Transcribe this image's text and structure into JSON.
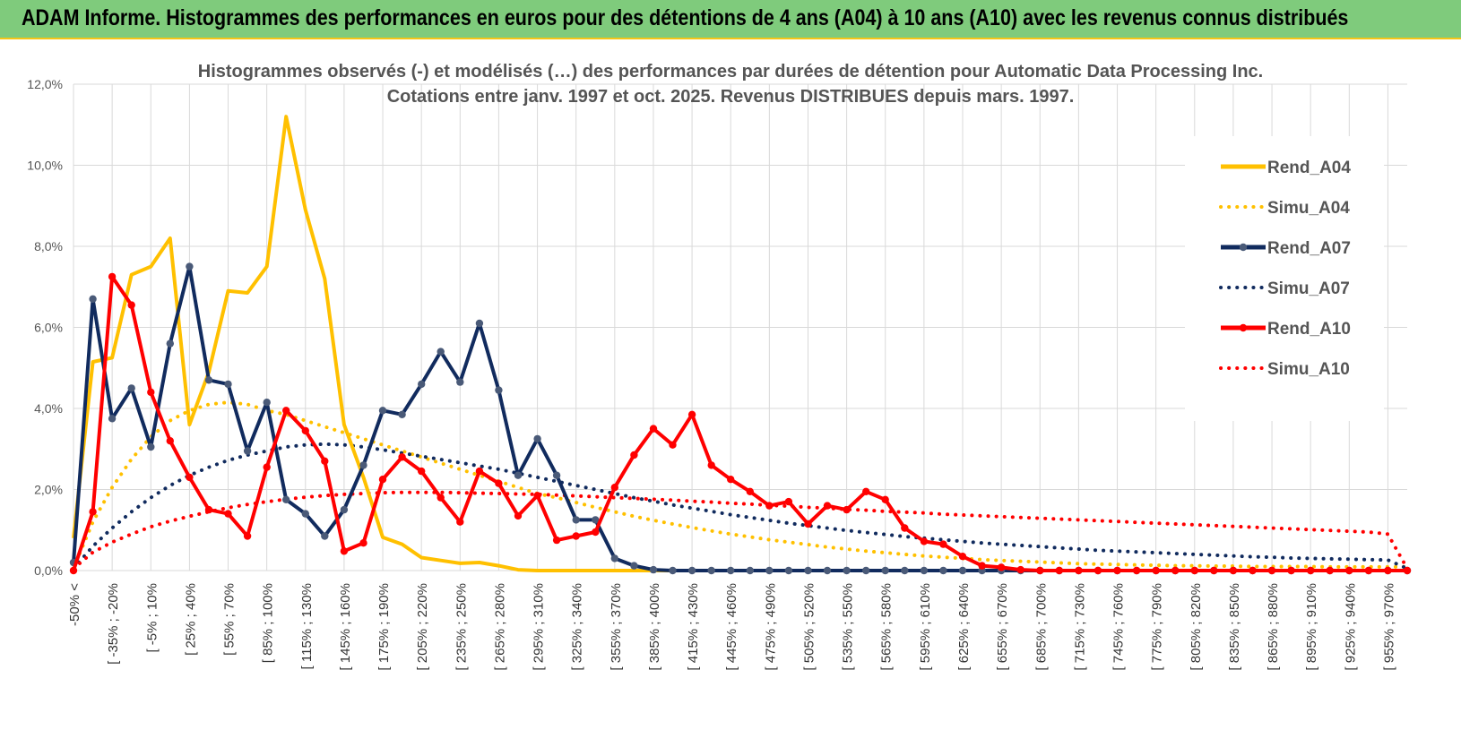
{
  "banner": {
    "title": "ADAM Informe. Histogrammes des performances en euros pour des détentions de 4 ans (A04) à 10 ans (A10) avec les revenus connus distribués"
  },
  "chart_data": {
    "type": "line",
    "title_line1": "Histogrammes observés (-) et modélisés (…) des performances par durées de détention pour Automatic Data Processing Inc.",
    "title_line2": "Cotations entre janv. 1997 et oct. 2025.  Revenus DISTRIBUES depuis mars. 1997.",
    "ylim": [
      0,
      12
    ],
    "yticks": [
      "0,0%",
      "2,0%",
      "4,0%",
      "6,0%",
      "8,0%",
      "10,0%",
      "12,0%"
    ],
    "xlabels": [
      "-50% <",
      "[ -35% ; -20%",
      "[ -5% ; 10%",
      "[ 25% ; 40%",
      "[ 55% ; 70%",
      "[ 85% ; 100%",
      "[ 115% ; 130%",
      "[ 145% ; 160%",
      "[ 175% ; 190%",
      "[ 205% ; 220%",
      "[ 235% ; 250%",
      "[ 265% ; 280%",
      "[ 295% ; 310%",
      "[ 325% ; 340%",
      "[ 355% ; 370%",
      "[ 385% ; 400%",
      "[ 415% ; 430%",
      "[ 445% ; 460%",
      "[ 475% ; 490%",
      "[ 505% ; 520%",
      "[ 535% ; 550%",
      "[ 565% ; 580%",
      "[ 595% ; 610%",
      "[ 625% ; 640%",
      "[ 655% ; 670%",
      "[ 685% ; 700%",
      "[ 715% ; 730%",
      "[ 745% ; 760%",
      "[ 775% ; 790%",
      "[ 805% ; 820%",
      "[ 835% ; 850%",
      "[ 865% ; 880%",
      "[ 895% ; 910%",
      "[ 925% ; 940%",
      "[ 955% ; 970%"
    ],
    "series": [
      {
        "name": "Rend_A04",
        "style": "solid",
        "color": "#ffc000",
        "markers": false,
        "values": [
          0.8,
          5.15,
          5.25,
          7.3,
          7.5,
          8.2,
          3.6,
          4.9,
          6.9,
          6.85,
          7.5,
          11.2,
          8.9,
          7.2,
          3.6,
          2.3,
          0.82,
          0.65,
          0.32,
          0.25,
          0.18,
          0.2,
          0.12,
          0.02,
          0,
          0,
          0,
          0,
          0,
          0,
          0,
          0,
          0,
          0,
          0,
          0,
          0,
          0,
          0,
          0,
          0,
          0,
          0,
          0,
          0,
          0,
          0,
          0,
          0,
          0,
          0,
          0,
          0,
          0,
          0,
          0,
          0,
          0,
          0,
          0,
          0,
          0,
          0,
          0,
          0,
          0,
          0,
          0,
          0,
          0
        ]
      },
      {
        "name": "Simu_A04",
        "style": "dotted",
        "color": "#ffc000",
        "markers": false,
        "values": [
          0.05,
          1.2,
          2.05,
          2.75,
          3.3,
          3.7,
          3.95,
          4.1,
          4.15,
          4.1,
          3.95,
          3.85,
          3.7,
          3.55,
          3.4,
          3.25,
          3.1,
          2.95,
          2.8,
          2.65,
          2.5,
          2.35,
          2.2,
          2.05,
          1.9,
          1.8,
          1.68,
          1.56,
          1.45,
          1.34,
          1.24,
          1.15,
          1.06,
          0.98,
          0.9,
          0.83,
          0.76,
          0.7,
          0.64,
          0.58,
          0.53,
          0.48,
          0.44,
          0.4,
          0.36,
          0.33,
          0.3,
          0.27,
          0.25,
          0.23,
          0.21,
          0.19,
          0.17,
          0.16,
          0.15,
          0.14,
          0.13,
          0.12,
          0.12,
          0.11,
          0.11,
          0.1,
          0.1,
          0.1,
          0.1,
          0.09,
          0.09,
          0.09,
          0.09,
          0.09
        ]
      },
      {
        "name": "Rend_A07",
        "style": "solid",
        "color": "#112b5e",
        "markers": true,
        "values": [
          0.2,
          6.7,
          3.75,
          4.5,
          3.05,
          5.6,
          7.5,
          4.7,
          4.6,
          2.95,
          4.15,
          1.75,
          1.4,
          0.85,
          1.5,
          2.6,
          3.95,
          3.85,
          4.6,
          5.4,
          4.65,
          6.1,
          4.45,
          2.35,
          3.25,
          2.35,
          1.25,
          1.25,
          0.3,
          0.12,
          0.02,
          0,
          0,
          0,
          0,
          0,
          0,
          0,
          0,
          0,
          0,
          0,
          0,
          0,
          0,
          0,
          0,
          0,
          0,
          0,
          0,
          0,
          0,
          0,
          0,
          0,
          0,
          0,
          0,
          0,
          0,
          0,
          0,
          0,
          0,
          0,
          0,
          0,
          0,
          0
        ]
      },
      {
        "name": "Simu_A07",
        "style": "dotted",
        "color": "#112b5e",
        "markers": false,
        "values": [
          0.05,
          0.6,
          1.05,
          1.45,
          1.8,
          2.1,
          2.35,
          2.55,
          2.72,
          2.85,
          2.95,
          3.05,
          3.1,
          3.12,
          3.1,
          3.05,
          2.98,
          2.9,
          2.82,
          2.74,
          2.66,
          2.58,
          2.5,
          2.4,
          2.3,
          2.2,
          2.1,
          2.0,
          1.9,
          1.8,
          1.71,
          1.62,
          1.54,
          1.46,
          1.38,
          1.31,
          1.24,
          1.17,
          1.11,
          1.05,
          0.99,
          0.94,
          0.89,
          0.84,
          0.8,
          0.76,
          0.72,
          0.68,
          0.65,
          0.62,
          0.59,
          0.56,
          0.53,
          0.5,
          0.48,
          0.46,
          0.44,
          0.42,
          0.4,
          0.38,
          0.36,
          0.34,
          0.33,
          0.31,
          0.3,
          0.29,
          0.28,
          0.27,
          0.26,
          0.05
        ]
      },
      {
        "name": "Rend_A10",
        "style": "solid",
        "color": "#ff0000",
        "markers": true,
        "values": [
          0,
          1.45,
          7.25,
          6.55,
          4.4,
          3.2,
          2.3,
          1.5,
          1.4,
          0.85,
          2.55,
          3.95,
          3.45,
          2.7,
          0.48,
          0.68,
          2.25,
          2.8,
          2.45,
          1.8,
          1.2,
          2.45,
          2.15,
          1.35,
          1.85,
          0.75,
          0.85,
          0.95,
          2.05,
          2.85,
          3.5,
          3.1,
          3.85,
          2.6,
          2.25,
          1.95,
          1.6,
          1.7,
          1.15,
          1.6,
          1.5,
          1.95,
          1.75,
          1.05,
          0.72,
          0.65,
          0.35,
          0.12,
          0.08,
          0.02,
          0,
          0,
          0,
          0,
          0,
          0,
          0,
          0,
          0,
          0,
          0,
          0,
          0,
          0,
          0,
          0,
          0,
          0,
          0,
          0
        ]
      },
      {
        "name": "Simu_A10",
        "style": "dotted",
        "color": "#ff0000",
        "markers": false,
        "values": [
          0.05,
          0.45,
          0.7,
          0.9,
          1.08,
          1.22,
          1.34,
          1.45,
          1.55,
          1.63,
          1.7,
          1.76,
          1.81,
          1.85,
          1.88,
          1.9,
          1.92,
          1.93,
          1.93,
          1.93,
          1.92,
          1.91,
          1.9,
          1.89,
          1.88,
          1.86,
          1.84,
          1.82,
          1.8,
          1.78,
          1.76,
          1.74,
          1.71,
          1.69,
          1.66,
          1.64,
          1.61,
          1.59,
          1.56,
          1.54,
          1.51,
          1.49,
          1.46,
          1.44,
          1.42,
          1.39,
          1.37,
          1.35,
          1.33,
          1.31,
          1.29,
          1.27,
          1.25,
          1.23,
          1.21,
          1.19,
          1.17,
          1.15,
          1.13,
          1.11,
          1.09,
          1.07,
          1.05,
          1.03,
          1.01,
          0.99,
          0.97,
          0.95,
          0.9,
          0.05
        ]
      }
    ]
  }
}
